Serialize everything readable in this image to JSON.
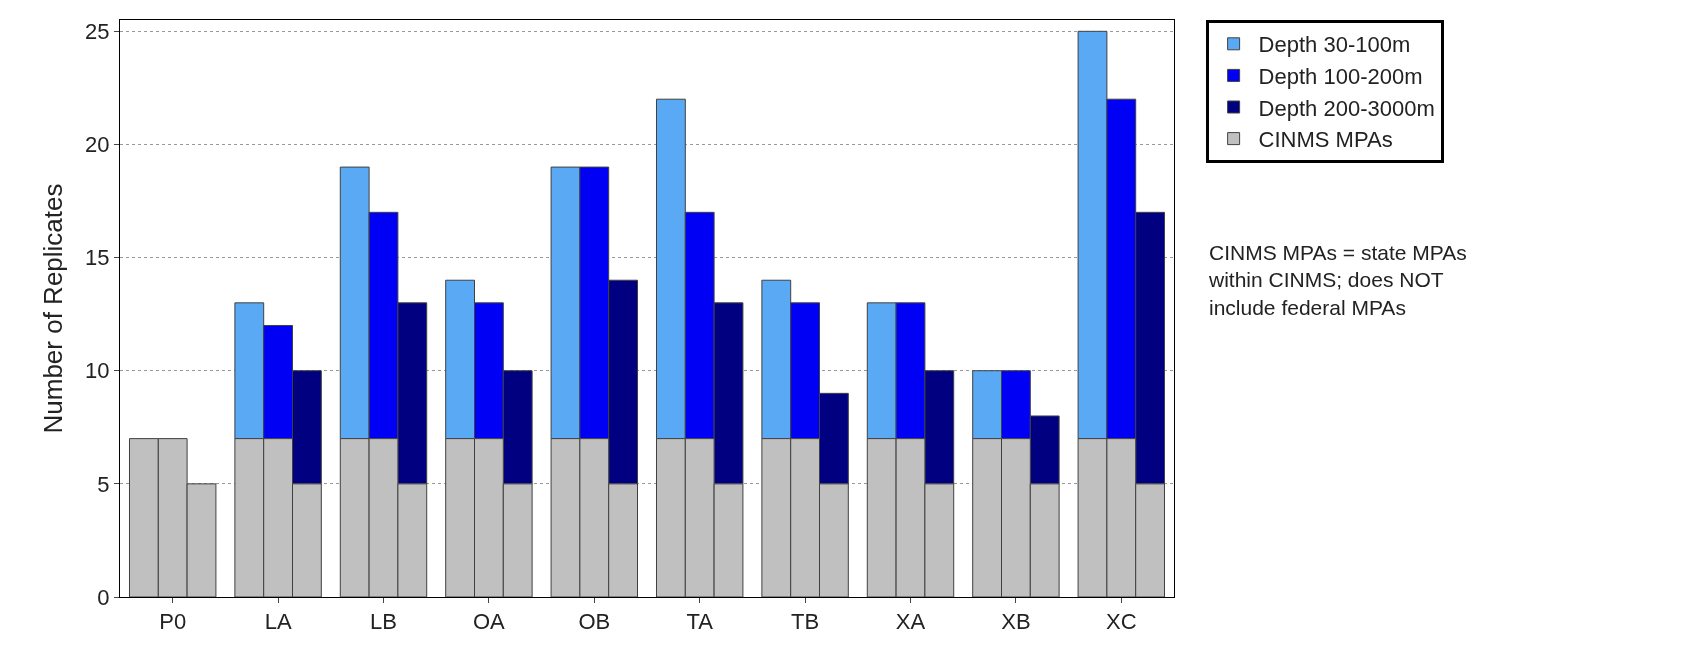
{
  "chart_data": {
    "type": "bar",
    "ylabel": "Number of Replicates",
    "categories": [
      "P0",
      "LA",
      "LB",
      "OA",
      "OB",
      "TA",
      "TB",
      "XA",
      "XB",
      "XC"
    ],
    "series": [
      {
        "name": "Depth 30-100m",
        "color": "#5aa9f5",
        "values": [
          null,
          6,
          12,
          7,
          12,
          15,
          7,
          6,
          3,
          18
        ],
        "base": [
          null,
          7,
          7,
          7,
          7,
          7,
          7,
          7,
          7,
          7
        ]
      },
      {
        "name": "Depth 100-200m",
        "color": "#0000f5",
        "values": [
          null,
          5,
          10,
          6,
          12,
          10,
          6,
          6,
          3,
          15
        ],
        "base": [
          null,
          7,
          7,
          7,
          7,
          7,
          7,
          7,
          7,
          7
        ]
      },
      {
        "name": "Depth 200-3000m",
        "color": "#000080",
        "values": [
          null,
          5,
          8,
          5,
          9,
          8,
          4,
          5,
          3,
          12
        ],
        "base": [
          null,
          5,
          5,
          5,
          5,
          5,
          5,
          5,
          5,
          5
        ]
      },
      {
        "name": "CINMS MPAs",
        "color": "#c0c0c0",
        "values": [
          7,
          7,
          7,
          7,
          7,
          7,
          7,
          7,
          7,
          7
        ]
      },
      {
        "color": "#c0c0c0",
        "values": [
          7,
          7,
          7,
          7,
          7,
          7,
          7,
          7,
          7,
          7
        ]
      },
      {
        "color": "#c0c0c0",
        "values": [
          5,
          5,
          5,
          5,
          5,
          5,
          5,
          5,
          5,
          5
        ]
      }
    ],
    "ylim": [
      0,
      25.5
    ],
    "yticks": [
      0,
      5,
      10,
      15,
      20,
      25
    ],
    "grid": "y",
    "legend": "top right",
    "annotations": [
      "CINMS MPAs = state MPAs within CINMS; does NOT include federal MPAs"
    ]
  }
}
